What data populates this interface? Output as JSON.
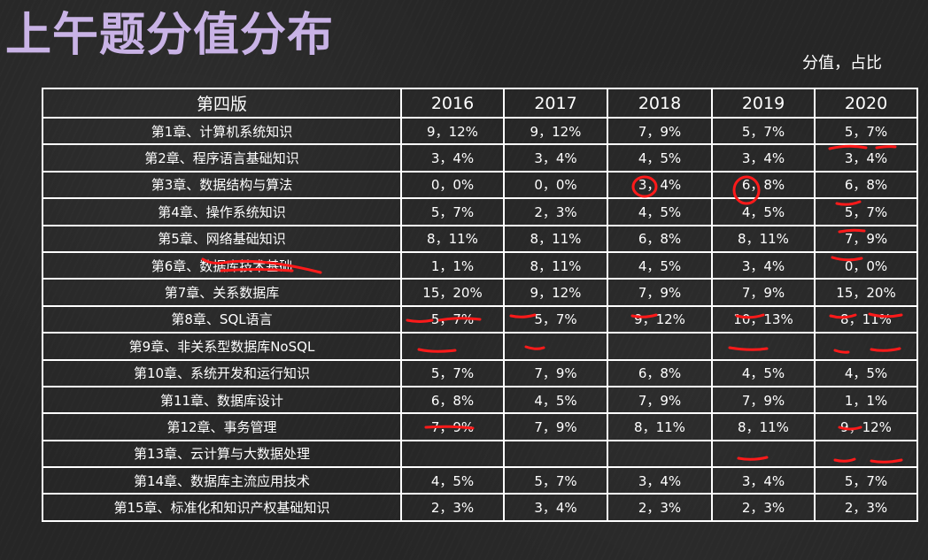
{
  "title": "上午题分值分布",
  "legend": "分值，占比",
  "header": {
    "edition": "第四版",
    "years": [
      "2016",
      "2017",
      "2018",
      "2019",
      "2020"
    ]
  },
  "rows": [
    {
      "chapter": "第1章、计算机系统知识",
      "color": "white",
      "values": [
        "9，12%",
        "9，12%",
        "7，9%",
        "5，7%",
        "5，7%"
      ]
    },
    {
      "chapter": "第2章、程序语言基础知识",
      "color": "white",
      "values": [
        "3，4%",
        "3，4%",
        "4，5%",
        "3，4%",
        "3，4%"
      ]
    },
    {
      "chapter": "第3章、数据结构与算法",
      "color": "orange",
      "values": [
        "0，0%",
        "0，0%",
        "3，4%",
        "6，8%",
        "6，8%"
      ]
    },
    {
      "chapter": "第4章、操作系统知识",
      "color": "white",
      "values": [
        "5，7%",
        "2，3%",
        "4，5%",
        "4，5%",
        "5，7%"
      ]
    },
    {
      "chapter": "第5章、网络基础知识",
      "color": "orange",
      "values": [
        "8，11%",
        "8，11%",
        "6，8%",
        "8，11%",
        "7，9%"
      ]
    },
    {
      "chapter": "第6章、数据库技术基础",
      "color": "white",
      "values": [
        "1，1%",
        "8，11%",
        "4，5%",
        "3，4%",
        "0，0%"
      ]
    },
    {
      "chapter": "第7章、关系数据库",
      "color": "pink",
      "values": [
        "15，20%",
        "9，12%",
        "7，9%",
        "7，9%",
        "15，20%"
      ]
    },
    {
      "chapter": "第8章、SQL语言",
      "color": "pink",
      "values": [
        "5，7%",
        "5，7%",
        "9，12%",
        "10，13%",
        "8，11%"
      ]
    },
    {
      "chapter": "第9章、非关系型数据库NoSQL",
      "color": "white",
      "values": [
        "",
        "",
        "",
        "",
        ""
      ]
    },
    {
      "chapter": "第10章、系统开发和运行知识",
      "color": "white",
      "values": [
        "5，7%",
        "7，9%",
        "6，8%",
        "4，5%",
        "4，5%"
      ]
    },
    {
      "chapter": "第11章、数据库设计",
      "color": "orange",
      "values": [
        "6，8%",
        "4，5%",
        "7，9%",
        "7，9%",
        "1，1%"
      ]
    },
    {
      "chapter": "第12章、事务管理",
      "color": "pink",
      "values": [
        "7，9%",
        "7，9%",
        "8，11%",
        "8，11%",
        "9，12%"
      ]
    },
    {
      "chapter": "第13章、云计算与大数据处理",
      "color": "white",
      "values": [
        "",
        "",
        "",
        "",
        ""
      ]
    },
    {
      "chapter": "第14章、数据库主流应用技术",
      "color": "white",
      "values": [
        "4，5%",
        "5，7%",
        "3，4%",
        "3，4%",
        "5，7%"
      ]
    },
    {
      "chapter": "第15章、标准化和知识产权基础知识",
      "color": "white",
      "values": [
        "2，3%",
        "3，4%",
        "2，3%",
        "2，3%",
        "2，3%"
      ]
    }
  ],
  "colors": {
    "title": "#c9b3e6",
    "edition_header": "#1fa9bf",
    "year_header": "#2ea7d8",
    "highlight_orange": "#f4a460",
    "highlight_pink": "#ef5b6d",
    "annotation_red": "#ff1a1a"
  }
}
